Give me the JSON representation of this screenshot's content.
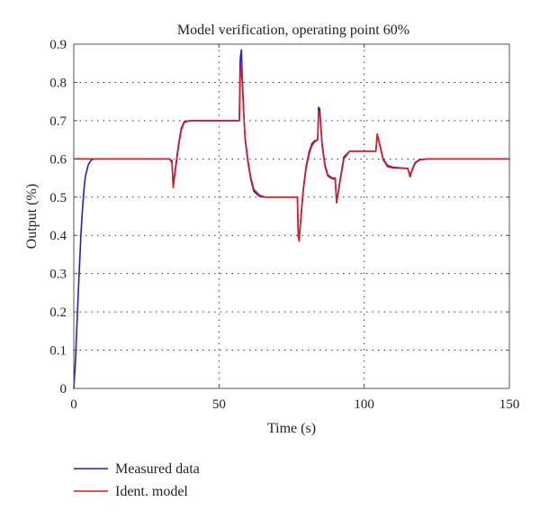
{
  "chart_data": {
    "type": "line",
    "title": "Model verification, operating point 60%",
    "xlabel": "Time (s)",
    "ylabel": "Output (%)",
    "xlim": [
      0,
      150
    ],
    "ylim": [
      0,
      0.9
    ],
    "xticks": [
      0,
      50,
      100,
      150
    ],
    "xtick_labels": [
      "0",
      "50",
      "100",
      "150"
    ],
    "yticks": [
      0,
      0.1,
      0.2,
      0.3,
      0.4,
      0.5,
      0.6,
      0.7,
      0.8,
      0.9
    ],
    "ytick_labels": [
      "0",
      "0.1",
      "0.2",
      "0.3",
      "0.4",
      "0.5",
      "0.6",
      "0.7",
      "0.8",
      "0.9"
    ],
    "grid": true,
    "legend": "bottom-left, below plot",
    "series": [
      {
        "name": "Measured data",
        "color": "#1f1fcc",
        "x": [
          0,
          0.5,
          1,
          1.5,
          2,
          2.5,
          3,
          3.5,
          4,
          5,
          6,
          7,
          8,
          10,
          20,
          30,
          33,
          33.8,
          34.2,
          35,
          36,
          37,
          38,
          40,
          45,
          50,
          55,
          57,
          57.3,
          57.7,
          58,
          58.5,
          59,
          60,
          61,
          62,
          64,
          66,
          70,
          77,
          77.3,
          77.6,
          78,
          79,
          80,
          81,
          82,
          83,
          84,
          84.3,
          84.7,
          85.5,
          86.5,
          87.5,
          89,
          90,
          90.5,
          91,
          92,
          93,
          95,
          100,
          104,
          104.5,
          105.5,
          106.5,
          108,
          110,
          115,
          115.8,
          116.3,
          117.5,
          119,
          122,
          130,
          140,
          150
        ],
        "y": [
          0,
          0.06,
          0.15,
          0.24,
          0.33,
          0.41,
          0.47,
          0.52,
          0.555,
          0.585,
          0.597,
          0.6,
          0.6,
          0.6,
          0.6,
          0.6,
          0.6,
          0.595,
          0.53,
          0.575,
          0.635,
          0.68,
          0.697,
          0.7,
          0.7,
          0.7,
          0.7,
          0.7,
          0.86,
          0.885,
          0.82,
          0.72,
          0.65,
          0.59,
          0.545,
          0.515,
          0.502,
          0.5,
          0.5,
          0.5,
          0.4,
          0.39,
          0.43,
          0.52,
          0.58,
          0.618,
          0.64,
          0.648,
          0.65,
          0.735,
          0.73,
          0.64,
          0.585,
          0.558,
          0.55,
          0.55,
          0.485,
          0.51,
          0.56,
          0.605,
          0.62,
          0.62,
          0.62,
          0.662,
          0.635,
          0.6,
          0.583,
          0.578,
          0.575,
          0.555,
          0.568,
          0.59,
          0.598,
          0.6,
          0.6,
          0.6,
          0.6
        ]
      },
      {
        "name": "Ident. model",
        "color": "#e8141e",
        "x": [
          0,
          33,
          33.8,
          34.2,
          35,
          36,
          37,
          38,
          40,
          45,
          50,
          55,
          57,
          57.3,
          57.7,
          58,
          58.5,
          59,
          60,
          61,
          62,
          64,
          66,
          70,
          77,
          77.3,
          77.6,
          78,
          79,
          80,
          81,
          82,
          83,
          84,
          84.3,
          84.7,
          85.5,
          86.5,
          87.5,
          89,
          90,
          90.5,
          91,
          92,
          93,
          95,
          100,
          104,
          104.5,
          105.5,
          106.5,
          108,
          110,
          115,
          115.8,
          116.3,
          117.5,
          119,
          122,
          130,
          140,
          150
        ],
        "y": [
          0.6,
          0.6,
          0.59,
          0.525,
          0.57,
          0.63,
          0.675,
          0.695,
          0.7,
          0.7,
          0.7,
          0.7,
          0.7,
          0.81,
          0.85,
          0.8,
          0.72,
          0.655,
          0.595,
          0.55,
          0.52,
          0.505,
          0.5,
          0.5,
          0.5,
          0.395,
          0.385,
          0.425,
          0.515,
          0.575,
          0.612,
          0.635,
          0.645,
          0.65,
          0.725,
          0.72,
          0.635,
          0.58,
          0.555,
          0.548,
          0.548,
          0.487,
          0.508,
          0.555,
          0.6,
          0.62,
          0.62,
          0.62,
          0.665,
          0.632,
          0.598,
          0.58,
          0.576,
          0.575,
          0.553,
          0.566,
          0.588,
          0.597,
          0.6,
          0.6,
          0.6,
          0.6
        ]
      }
    ]
  }
}
